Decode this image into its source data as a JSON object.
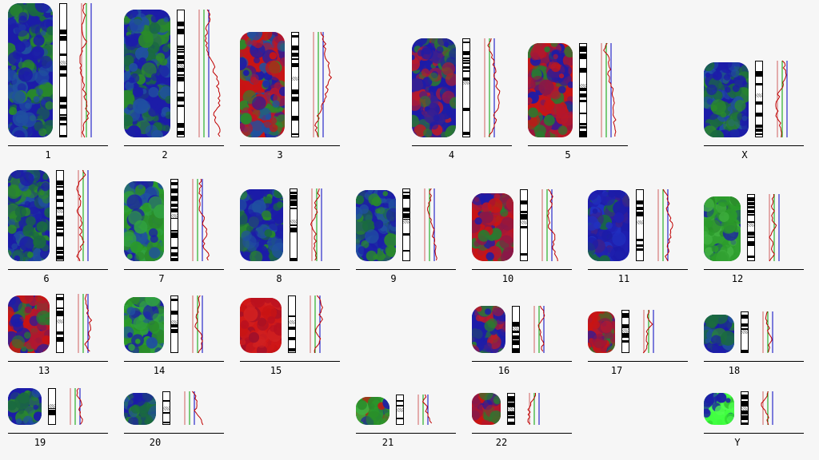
{
  "karyogram": {
    "chromosomes": [
      {
        "label": "1",
        "dominant": "blue-green"
      },
      {
        "label": "2",
        "dominant": "blue-green"
      },
      {
        "label": "3",
        "dominant": "red-blue-green"
      },
      {
        "label": "4",
        "dominant": "blue-red"
      },
      {
        "label": "5",
        "dominant": "red-blue"
      },
      {
        "label": "X",
        "dominant": "blue-green"
      },
      {
        "label": "6",
        "dominant": "blue-green"
      },
      {
        "label": "7",
        "dominant": "green-blue"
      },
      {
        "label": "8",
        "dominant": "blue-green"
      },
      {
        "label": "9",
        "dominant": "blue-green"
      },
      {
        "label": "10",
        "dominant": "red-blue"
      },
      {
        "label": "11",
        "dominant": "blue"
      },
      {
        "label": "12",
        "dominant": "green"
      },
      {
        "label": "13",
        "dominant": "red-blue"
      },
      {
        "label": "14",
        "dominant": "green-blue"
      },
      {
        "label": "15",
        "dominant": "red"
      },
      {
        "label": "16",
        "dominant": "blue-red"
      },
      {
        "label": "17",
        "dominant": "red-blue"
      },
      {
        "label": "18",
        "dominant": "blue-green"
      },
      {
        "label": "19",
        "dominant": "blue-green"
      },
      {
        "label": "20",
        "dominant": "blue-green"
      },
      {
        "label": "21",
        "dominant": "green-red"
      },
      {
        "label": "22",
        "dominant": "red-blue"
      },
      {
        "label": "Y",
        "dominant": "bright-green"
      }
    ],
    "colors": {
      "red": "#c81414",
      "green": "#28a028",
      "blue": "#1c1ca8",
      "profile": "#c00000",
      "line_green": "#00a000",
      "line_blue": "#0000c0",
      "bright_green": "#40ff40"
    }
  }
}
